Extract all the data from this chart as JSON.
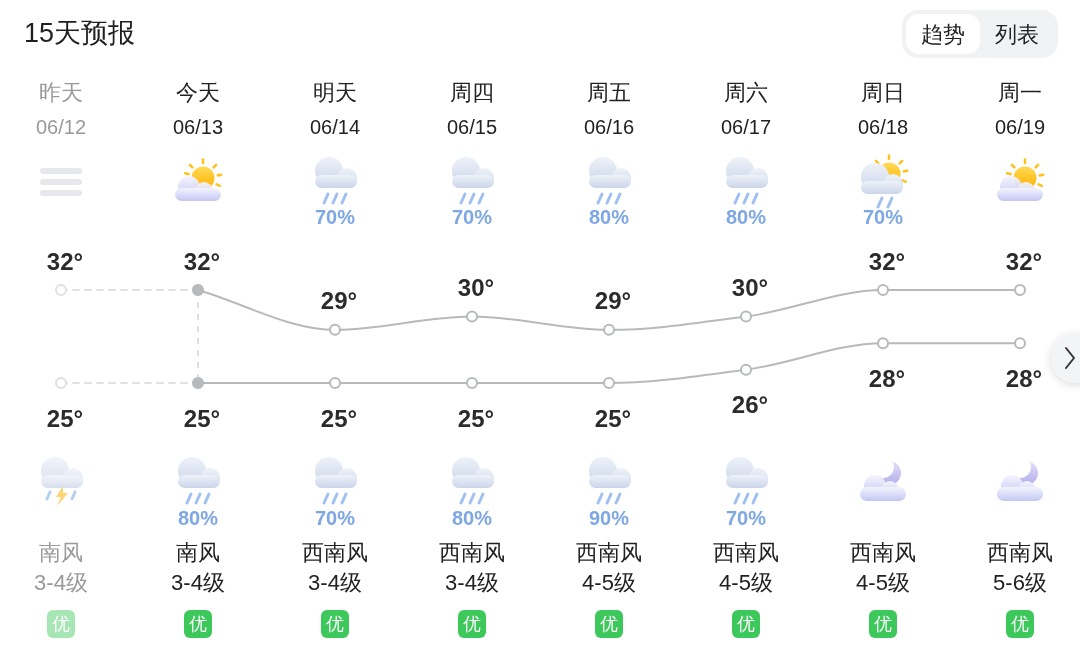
{
  "chart_data": {
    "type": "line",
    "title": "15天预报",
    "categories": [
      "昨天\n06/12",
      "今天\n06/13",
      "明天\n06/14",
      "周四\n06/15",
      "周五\n06/16",
      "周六\n06/17",
      "周日\n06/18",
      "周一\n06/19"
    ],
    "series": [
      {
        "color": "#e0e0e0",
        "line_style": "dashed",
        "values": [
          32,
          32,
          null,
          null,
          null,
          null,
          null,
          null
        ],
        "value_labels": [
          "32°",
          null,
          null,
          null,
          null,
          null,
          null,
          null
        ]
      },
      {
        "color": "#b6babd",
        "values": [
          null,
          32,
          29,
          30,
          29,
          30,
          32,
          32
        ],
        "value_labels": [
          null,
          "32°",
          "29°",
          "30°",
          "29°",
          "30°",
          "32°",
          "32°"
        ]
      },
      {
        "color": "#e0e0e0",
        "line_style": "dashed",
        "values": [
          25,
          25,
          null,
          null,
          null,
          null,
          null,
          null
        ],
        "value_labels": [
          "25°",
          null,
          null,
          null,
          null,
          null,
          null,
          null
        ]
      },
      {
        "color": "#b6babd",
        "values": [
          null,
          25,
          25,
          25,
          25,
          26,
          28,
          28
        ],
        "value_labels": [
          null,
          "25°",
          "25°",
          "25°",
          "25°",
          "26°",
          "28°",
          "28°"
        ]
      }
    ],
    "marker": "circle",
    "tick_labels": "x",
    "ref_lines": [
      {
        "axis": "x",
        "value": "今天\n06/13",
        "color": "#d6d6d6",
        "line_style": "dashed"
      }
    ],
    "annotations": [
      "趋势",
      "列表",
      {
        "text": "70%",
        "x": "明天\n06/14"
      },
      {
        "text": "70%",
        "x": "周四\n06/15"
      },
      {
        "text": "80%",
        "x": "周五\n06/16"
      },
      {
        "text": "80%",
        "x": "周六\n06/17"
      },
      {
        "text": "70%",
        "x": "周日\n06/18"
      },
      {
        "text": "80%",
        "x": "今天\n06/13"
      },
      {
        "text": "70%",
        "x": "明天\n06/14"
      },
      {
        "text": "80%",
        "x": "周四\n06/15"
      },
      {
        "text": "90%",
        "x": "周五\n06/16"
      },
      {
        "text": "70%",
        "x": "周六\n06/17"
      },
      "南风",
      "南风",
      "西南风",
      "西南风",
      "西南风",
      "西南风",
      "西南风",
      "西南风",
      "3-4级",
      "3-4级",
      "3-4级",
      "3-4级",
      "4-5级",
      "4-5级",
      "4-5级",
      "5-6级",
      "优",
      "优",
      "优",
      "优",
      "优",
      "优",
      "优",
      "优"
    ]
  }
}
